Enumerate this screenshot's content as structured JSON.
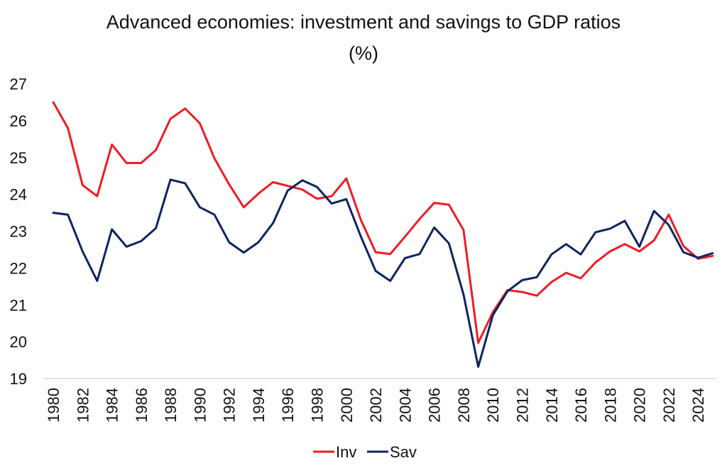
{
  "title_line1": "Advanced economies: investment and savings to GDP ratios",
  "title_line2": "(%)",
  "chart_data": {
    "type": "line",
    "x": [
      1980,
      1981,
      1982,
      1983,
      1984,
      1985,
      1986,
      1987,
      1988,
      1989,
      1990,
      1991,
      1992,
      1993,
      1994,
      1995,
      1996,
      1997,
      1998,
      1999,
      2000,
      2001,
      2002,
      2003,
      2004,
      2005,
      2006,
      2007,
      2008,
      2009,
      2010,
      2011,
      2012,
      2013,
      2014,
      2015,
      2016,
      2017,
      2018,
      2019,
      2020,
      2021,
      2022,
      2023,
      2024,
      2025
    ],
    "x_tick_labels": [
      "1980",
      "1982",
      "1984",
      "1986",
      "1988",
      "1990",
      "1992",
      "1994",
      "1996",
      "1998",
      "2000",
      "2002",
      "2004",
      "2006",
      "2008",
      "2010",
      "2012",
      "2014",
      "2016",
      "2018",
      "2020",
      "2022",
      "2024"
    ],
    "y_tick_labels": [
      "19",
      "20",
      "21",
      "22",
      "23",
      "24",
      "25",
      "26",
      "27"
    ],
    "ylim": [
      19,
      27
    ],
    "grid": false,
    "legend_position": "bottom",
    "series": [
      {
        "name": "Inv",
        "color": "#ee1c25",
        "values": [
          26.5,
          25.8,
          24.25,
          23.95,
          25.35,
          24.85,
          24.85,
          25.2,
          26.05,
          26.33,
          25.93,
          24.98,
          24.27,
          23.65,
          24.02,
          24.33,
          24.23,
          24.13,
          23.88,
          23.95,
          24.43,
          23.3,
          22.43,
          22.38,
          22.85,
          23.33,
          23.77,
          23.72,
          23.03,
          19.97,
          20.8,
          21.4,
          21.35,
          21.25,
          21.62,
          21.87,
          21.72,
          22.15,
          22.45,
          22.65,
          22.45,
          22.75,
          23.45,
          22.6,
          22.25,
          22.33
        ]
      },
      {
        "name": "Sav",
        "color": "#0c2461",
        "values": [
          23.5,
          23.45,
          22.45,
          21.65,
          23.05,
          22.58,
          22.73,
          23.08,
          24.4,
          24.3,
          23.65,
          23.45,
          22.7,
          22.42,
          22.7,
          23.22,
          24.1,
          24.38,
          24.2,
          23.75,
          23.87,
          22.85,
          21.92,
          21.65,
          22.27,
          22.38,
          23.1,
          22.67,
          21.28,
          19.32,
          20.72,
          21.37,
          21.67,
          21.75,
          22.37,
          22.65,
          22.37,
          22.97,
          23.07,
          23.28,
          22.58,
          23.55,
          23.17,
          22.43,
          22.28,
          22.4
        ]
      }
    ]
  }
}
